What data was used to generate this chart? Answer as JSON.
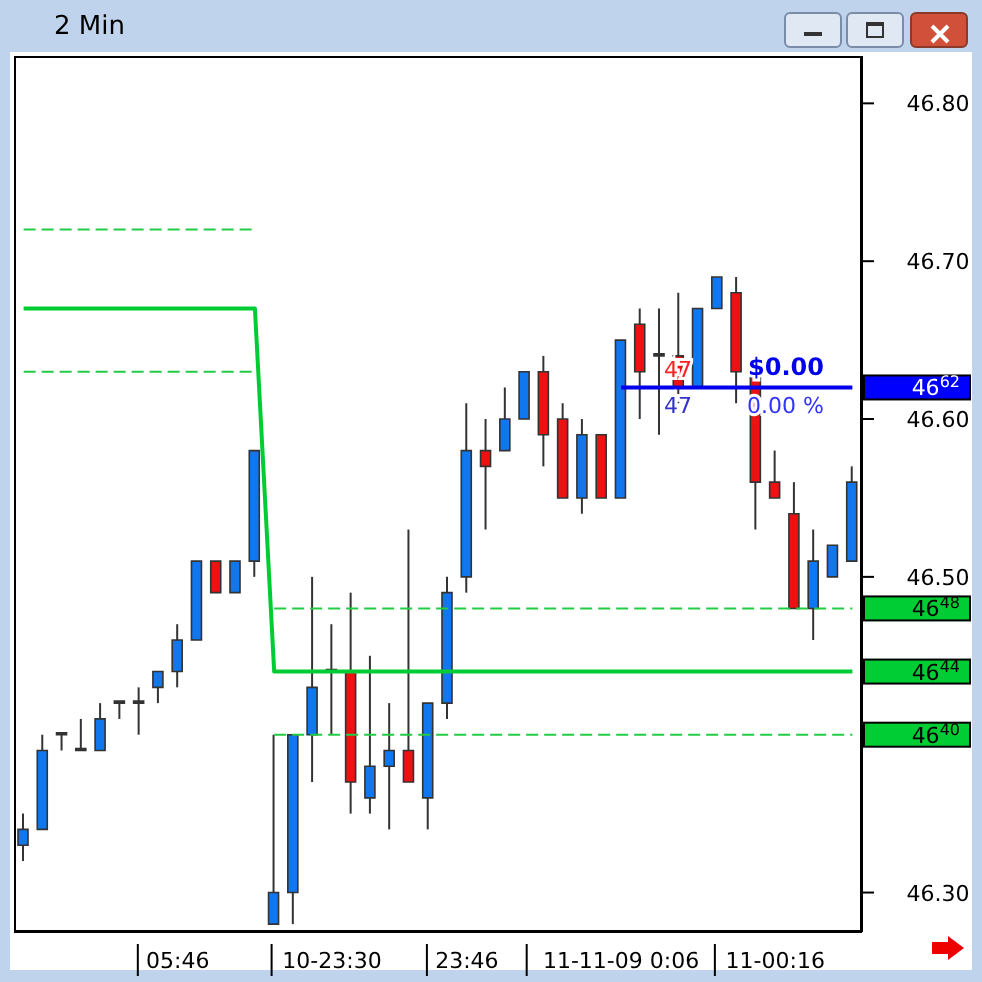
{
  "chart_data": {
    "type": "candlestick",
    "title": "2 Min",
    "categories": [
      null,
      null,
      null,
      null,
      null,
      null,
      null,
      null,
      "05:46",
      null,
      null,
      null,
      null,
      null,
      null,
      null,
      "10-23:30",
      null,
      null,
      null,
      null,
      null,
      null,
      "23:46",
      null,
      null,
      null,
      null,
      null,
      null,
      null,
      "11-11-09 0:06",
      null,
      null,
      null,
      null,
      null,
      null,
      null,
      "11-00:16",
      null,
      null,
      null,
      null
    ],
    "ohlc": [
      [
        46.33,
        46.35,
        46.32,
        46.34
      ],
      [
        46.34,
        46.4,
        46.34,
        46.39
      ],
      [
        46.4,
        46.4,
        46.39,
        46.4
      ],
      [
        46.39,
        46.41,
        46.39,
        46.39
      ],
      [
        46.39,
        46.42,
        46.39,
        46.41
      ],
      [
        46.42,
        46.42,
        46.41,
        46.42
      ],
      [
        46.42,
        46.43,
        46.4,
        46.42
      ],
      [
        46.43,
        46.44,
        46.42,
        46.44
      ],
      [
        46.44,
        46.47,
        46.43,
        46.46
      ],
      [
        46.46,
        46.51,
        46.46,
        46.51
      ],
      [
        46.51,
        46.51,
        46.49,
        46.49
      ],
      [
        46.49,
        46.51,
        46.49,
        46.51
      ],
      [
        46.51,
        46.58,
        46.5,
        46.58
      ],
      [
        46.28,
        46.4,
        46.28,
        46.3
      ],
      [
        46.3,
        46.4,
        46.28,
        46.4
      ],
      [
        46.4,
        46.5,
        46.37,
        46.43
      ],
      [
        46.44,
        46.47,
        46.4,
        46.44
      ],
      [
        46.44,
        46.49,
        46.35,
        46.37
      ],
      [
        46.36,
        46.45,
        46.35,
        46.38
      ],
      [
        46.38,
        46.42,
        46.34,
        46.39
      ],
      [
        46.39,
        46.53,
        46.37,
        46.37
      ],
      [
        46.36,
        46.42,
        46.34,
        46.42
      ],
      [
        46.42,
        46.5,
        46.41,
        46.49
      ],
      [
        46.5,
        46.61,
        46.49,
        46.58
      ],
      [
        46.58,
        46.6,
        46.53,
        46.57
      ],
      [
        46.58,
        46.62,
        46.58,
        46.6
      ],
      [
        46.6,
        46.63,
        46.6,
        46.63
      ],
      [
        46.63,
        46.64,
        46.57,
        46.59
      ],
      [
        46.6,
        46.61,
        46.55,
        46.55
      ],
      [
        46.55,
        46.6,
        46.54,
        46.59
      ],
      [
        46.59,
        46.59,
        46.55,
        46.55
      ],
      [
        46.55,
        46.65,
        46.55,
        46.65
      ],
      [
        46.66,
        46.67,
        46.6,
        46.63
      ],
      [
        46.64,
        46.67,
        46.59,
        46.64
      ],
      [
        46.64,
        46.68,
        46.61,
        46.62
      ],
      [
        46.62,
        46.67,
        46.62,
        46.67
      ],
      [
        46.67,
        46.69,
        46.67,
        46.69
      ],
      [
        46.68,
        46.69,
        46.61,
        46.63
      ],
      [
        46.63,
        46.63,
        46.53,
        46.56
      ],
      [
        46.56,
        46.58,
        46.55,
        46.55
      ],
      [
        46.54,
        46.56,
        46.48,
        46.48
      ],
      [
        46.48,
        46.53,
        46.46,
        46.51
      ],
      [
        46.5,
        46.52,
        46.5,
        46.52
      ],
      [
        46.51,
        46.57,
        46.51,
        46.56
      ]
    ],
    "colors": [
      "#1177ee",
      "#1177ee",
      "#333333",
      "#333333",
      "#1177ee",
      "#333333",
      "#333333",
      "#1177ee",
      "#1177ee",
      "#1177ee",
      "#ee1111",
      "#1177ee",
      "#1177ee",
      "#1177ee",
      "#1177ee",
      "#1177ee",
      "#333333",
      "#ee1111",
      "#1177ee",
      "#1177ee",
      "#ee1111",
      "#1177ee",
      "#1177ee",
      "#1177ee",
      "#ee1111",
      "#1177ee",
      "#1177ee",
      "#ee1111",
      "#ee1111",
      "#1177ee",
      "#ee1111",
      "#1177ee",
      "#ee1111",
      "#333333",
      "#ee1111",
      "#1177ee",
      "#1177ee",
      "#ee1111",
      "#ee1111",
      "#ee1111",
      "#ee1111",
      "#1177ee",
      "#1177ee",
      "#1177ee"
    ],
    "series": [
      {
        "type": "line",
        "color": "#00cc33",
        "line_style": "solid",
        "values": [
          46.67,
          46.67,
          46.67,
          46.67,
          46.67,
          46.67,
          46.67,
          46.67,
          46.67,
          46.67,
          46.67,
          46.67,
          46.67,
          46.44,
          46.44,
          46.44,
          46.44,
          46.44,
          46.44,
          46.44,
          46.44,
          46.44,
          46.44,
          46.44,
          46.44,
          46.44,
          46.44,
          46.44,
          46.44,
          46.44,
          46.44,
          46.44,
          46.44,
          46.44,
          46.44,
          46.44,
          46.44,
          46.44,
          46.44,
          46.44,
          46.44,
          46.44,
          46.44,
          46.44
        ]
      },
      {
        "type": "line",
        "color": "#22cc44",
        "line_style": "dashed",
        "values": [
          46.72,
          46.72,
          46.72,
          46.72,
          46.72,
          46.72,
          46.72,
          46.72,
          46.72,
          46.72,
          46.72,
          46.72,
          46.72,
          null,
          null,
          null,
          null,
          null,
          null,
          null,
          null,
          null,
          null,
          null,
          null,
          null,
          null,
          null,
          null,
          null,
          null,
          null,
          null,
          null,
          null,
          null,
          null,
          null,
          null,
          null,
          null,
          null,
          null,
          null
        ]
      },
      {
        "type": "line",
        "color": "#22cc44",
        "line_style": "dashed",
        "values": [
          46.63,
          46.63,
          46.63,
          46.63,
          46.63,
          46.63,
          46.63,
          46.63,
          46.63,
          46.63,
          46.63,
          46.63,
          46.63,
          null,
          null,
          null,
          null,
          null,
          null,
          null,
          null,
          null,
          null,
          null,
          null,
          null,
          null,
          null,
          null,
          null,
          null,
          null,
          null,
          null,
          null,
          null,
          null,
          null,
          null,
          null,
          null,
          null,
          null,
          null
        ]
      },
      {
        "type": "line",
        "color": "#22cc44",
        "line_style": "dashed",
        "values": [
          null,
          null,
          null,
          null,
          null,
          null,
          null,
          null,
          null,
          null,
          null,
          null,
          null,
          46.48,
          46.48,
          46.48,
          46.48,
          46.48,
          46.48,
          46.48,
          46.48,
          46.48,
          46.48,
          46.48,
          46.48,
          46.48,
          46.48,
          46.48,
          46.48,
          46.48,
          46.48,
          46.48,
          46.48,
          46.48,
          46.48,
          46.48,
          46.48,
          46.48,
          46.48,
          46.48,
          46.48,
          46.48,
          46.48,
          46.48
        ]
      },
      {
        "type": "line",
        "color": "#22cc44",
        "line_style": "dashed",
        "values": [
          null,
          null,
          null,
          null,
          null,
          null,
          null,
          null,
          null,
          null,
          null,
          null,
          null,
          46.4,
          46.4,
          46.4,
          46.4,
          46.4,
          46.4,
          46.4,
          46.4,
          46.4,
          46.4,
          46.4,
          46.4,
          46.4,
          46.4,
          46.4,
          46.4,
          46.4,
          46.4,
          46.4,
          46.4,
          46.4,
          46.4,
          46.4,
          46.4,
          46.4,
          46.4,
          46.4,
          46.4,
          46.4,
          46.4,
          46.4
        ]
      },
      {
        "type": "line",
        "color": "#0000ee",
        "line_style": "solid",
        "values": [
          null,
          null,
          null,
          null,
          null,
          null,
          null,
          null,
          null,
          null,
          null,
          null,
          null,
          null,
          null,
          null,
          null,
          null,
          null,
          null,
          null,
          null,
          null,
          null,
          null,
          null,
          null,
          null,
          null,
          null,
          null,
          46.62,
          46.62,
          46.62,
          46.62,
          46.62,
          46.62,
          46.62,
          46.62,
          46.62,
          46.62,
          46.62,
          46.62,
          46.62
        ]
      }
    ],
    "ylim": [
      46.275,
      46.83
    ],
    "yticks": [
      {
        "value": 46.3,
        "label": "46.30"
      },
      {
        "value": 46.5,
        "label": "46.50"
      },
      {
        "value": 46.6,
        "label": "46.60"
      },
      {
        "value": 46.7,
        "label": "46.70"
      },
      {
        "value": 46.8,
        "label": "46.80"
      }
    ],
    "annotations": [
      "46$^{62}$",
      "46$^{48}$",
      "46$^{44}$",
      "46$^{40}$",
      "$0.00",
      "0.00 %",
      "47",
      "47"
    ]
  }
}
